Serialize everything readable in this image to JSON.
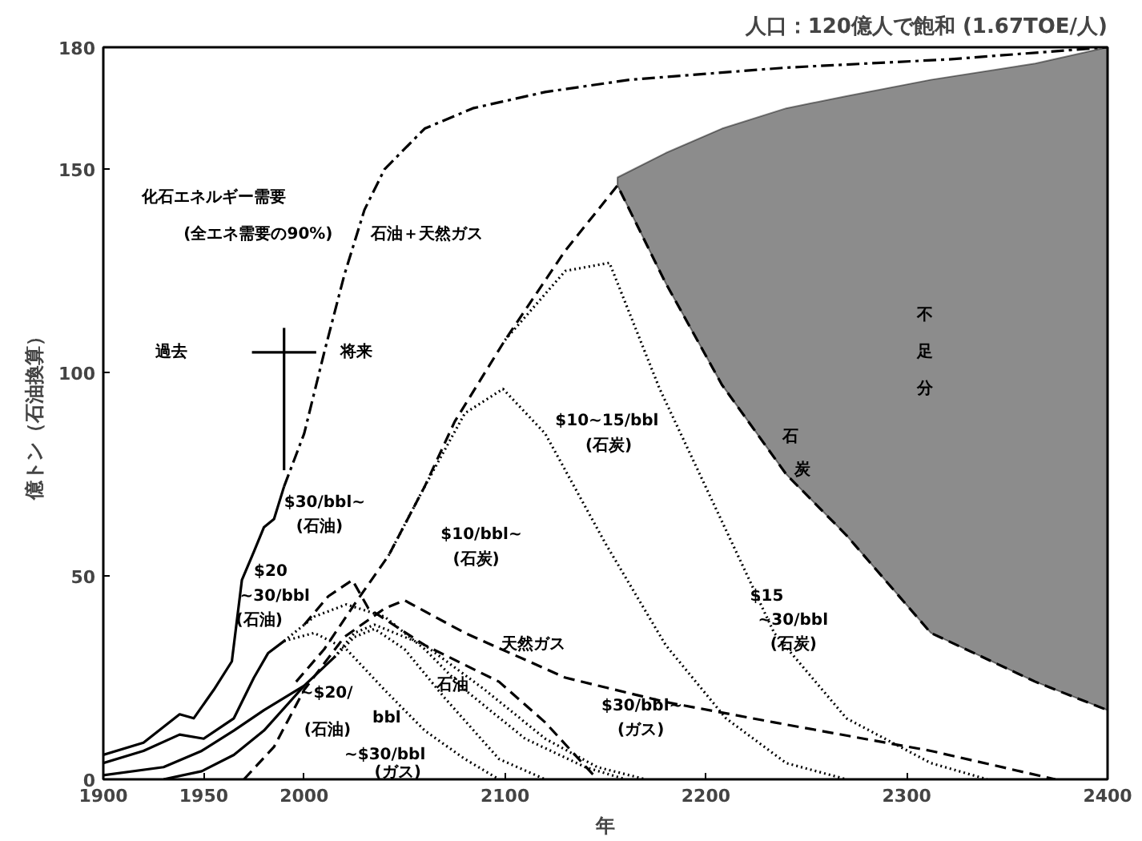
{
  "chart_data": {
    "type": "line",
    "title": "人口：120億人で飽和 (1.67TOE/人)",
    "xlabel": "年",
    "ylabel": "億トン（石油換算）",
    "xlim": [
      1900,
      2400
    ],
    "ylim": [
      0,
      180
    ],
    "xticks": [
      1900,
      1950,
      2000,
      2100,
      2200,
      2300,
      2400
    ],
    "yticks": [
      0,
      50,
      100,
      150,
      180
    ],
    "grid": false,
    "marker": "none",
    "series": [
      {
        "color": "#000000",
        "line_style": "solid",
        "x": [
          1900,
          1920,
          1938,
          1945,
          1955,
          1964,
          1969,
          1975,
          1980,
          1985,
          1990
        ],
        "values": [
          6,
          9,
          16,
          15,
          22,
          29,
          49,
          56,
          62,
          64,
          72
        ]
      },
      {
        "color": "#000000",
        "line_style": "dashdot",
        "x": [
          1990,
          2000,
          2010,
          2020,
          2030,
          2040,
          2060,
          2084,
          2120,
          2162,
          2240,
          2320,
          2400
        ],
        "values": [
          72,
          85,
          105,
          124,
          140,
          150,
          160,
          165,
          169,
          172,
          175,
          177,
          180
        ]
      },
      {
        "color": "#000000",
        "line_style": "solid",
        "x": [
          1900,
          1920,
          1938,
          1950,
          1965,
          1975,
          1982,
          1990
        ],
        "values": [
          4,
          7,
          11,
          10,
          15,
          25,
          31,
          34
        ]
      },
      {
        "color": "#000000",
        "line_style": "solid",
        "x": [
          1900,
          1930,
          1949,
          1965,
          1980,
          1990,
          2000
        ],
        "values": [
          1,
          3,
          7,
          12,
          17,
          20,
          23
        ]
      },
      {
        "color": "#000000",
        "line_style": "solid",
        "x": [
          1930,
          1949,
          1965,
          1980,
          2000,
          2015
        ],
        "values": [
          0,
          2,
          6,
          12,
          23,
          30
        ]
      },
      {
        "color": "#000000",
        "line_style": "dotted",
        "x": [
          1990,
          2005,
          2021,
          2040,
          2060,
          2080,
          2097
        ],
        "values": [
          34,
          36,
          32,
          22,
          12,
          5,
          0
        ]
      },
      {
        "color": "#000000",
        "line_style": "dotted",
        "x": [
          1990,
          2005,
          2021,
          2040,
          2060,
          2080,
          2110,
          2140,
          2160
        ],
        "values": [
          34,
          40,
          43,
          40,
          32,
          22,
          10,
          3,
          0
        ]
      },
      {
        "color": "#000000",
        "line_style": "dashed",
        "x": [
          2000,
          2012,
          2024,
          2032,
          2060,
          2097,
          2120,
          2146
        ],
        "values": [
          38,
          45,
          49,
          42,
          33,
          24,
          14,
          0
        ]
      },
      {
        "color": "#000000",
        "line_style": "dotted",
        "x": [
          2015,
          2025,
          2035,
          2050,
          2070,
          2097,
          2120
        ],
        "values": [
          30,
          35,
          37,
          32,
          20,
          5,
          0
        ]
      },
      {
        "color": "#000000",
        "line_style": "dotted",
        "x": [
          2015,
          2025,
          2035,
          2060,
          2090,
          2120,
          2146,
          2170
        ],
        "values": [
          30,
          36,
          38,
          33,
          22,
          10,
          3,
          0
        ]
      },
      {
        "color": "#000000",
        "line_style": "dashed",
        "x": [
          1970,
          1985,
          2000,
          2020,
          2040,
          2050,
          2080,
          2130,
          2180,
          2234,
          2312,
          2374
        ],
        "values": [
          0,
          8,
          22,
          35,
          42,
          44,
          36,
          25,
          19,
          14,
          7,
          0
        ]
      },
      {
        "color": "#000000",
        "line_style": "dashed",
        "x": [
          1996,
          2010,
          2025,
          2042,
          2060,
          2075,
          2100,
          2130,
          2156,
          2180,
          2208,
          2240,
          2270,
          2312,
          2364,
          2400
        ],
        "values": [
          24,
          32,
          43,
          55,
          72,
          88,
          108,
          130,
          146,
          122,
          97,
          75,
          60,
          36,
          24,
          17
        ],
        "lower": [
          null,
          null,
          null,
          null,
          null,
          null,
          null,
          null,
          146,
          122,
          97,
          75,
          60,
          36,
          24,
          17
        ],
        "upper": [
          null,
          null,
          null,
          null,
          null,
          null,
          null,
          null,
          148,
          154,
          160,
          165,
          168,
          172,
          176,
          180
        ]
      },
      {
        "color": "#000000",
        "line_style": "dotted",
        "x": [
          2042,
          2060,
          2080,
          2099,
          2120,
          2150,
          2180,
          2210,
          2240,
          2270
        ],
        "values": [
          55,
          72,
          90,
          96,
          85,
          58,
          33,
          15,
          4,
          0
        ]
      },
      {
        "color": "#000000",
        "line_style": "dotted",
        "x": [
          2100,
          2130,
          2152,
          2177,
          2216,
          2234,
          2270,
          2312,
          2340
        ],
        "values": [
          108,
          125,
          127,
          96,
          55,
          36,
          15,
          4,
          0
        ]
      },
      {
        "color": "#000000",
        "line_style": "solid",
        "x": [
          1990,
          1990
        ],
        "values": [
          76,
          111
        ]
      },
      {
        "color": "#000000",
        "line_style": "solid",
        "x": [
          1974,
          2006
        ],
        "values": [
          105,
          105
        ]
      }
    ],
    "annotations": [
      "化石エネルギー需要",
      "(全エネ需要の90%)",
      "石油＋天然ガス",
      "過去",
      "将来",
      "$30/bbl~",
      "(石油)",
      "$10/bbl~",
      "(石炭)",
      "$10~15/bbl",
      "(石炭)",
      "石",
      "炭",
      "不",
      "足",
      "分",
      "$15",
      "~30/bbl",
      "(石炭)",
      "$20",
      "~30/bbl",
      "(石油)",
      "天然ガス",
      "石油",
      "~$20/",
      "bbl",
      "(石油)",
      "~$30/bbl",
      "(ガス)",
      "$30/bbl~",
      "(ガス)"
    ]
  }
}
